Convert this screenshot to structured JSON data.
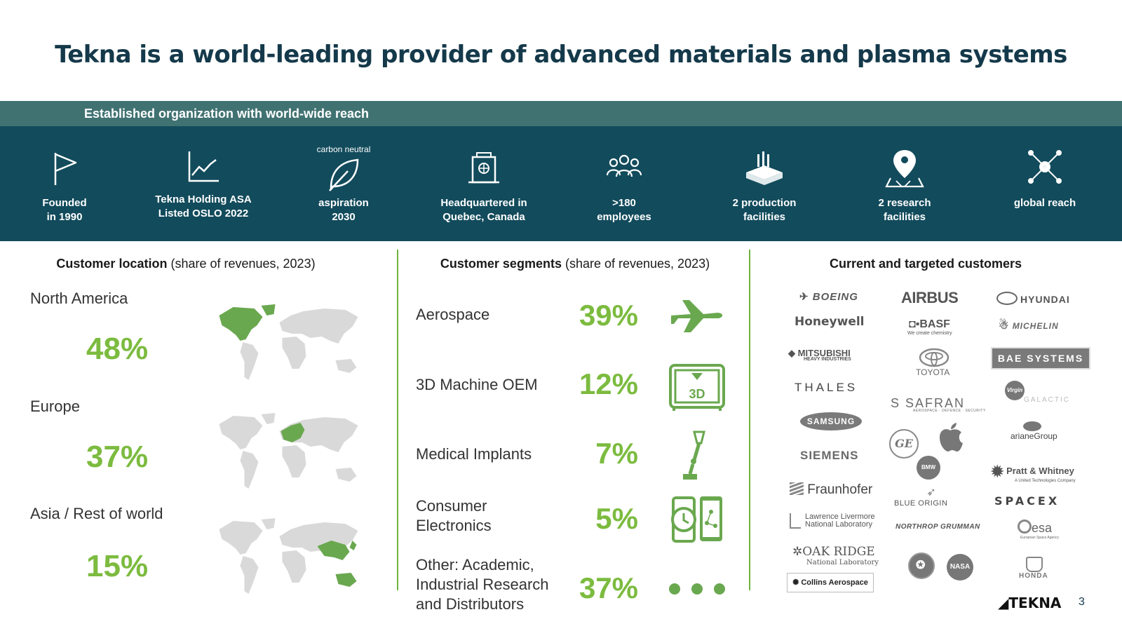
{
  "title": "Tekna is a world-leading provider of advanced materials and plasma systems",
  "band_header": "Established organization with world-wide reach",
  "facts": [
    {
      "icon": "flag-icon",
      "line1": "Founded",
      "line2": "in 1990"
    },
    {
      "icon": "trend-chart-icon",
      "line1": "Tekna Holding ASA",
      "line2": "Listed OSLO 2022"
    },
    {
      "icon": "leaf-icon",
      "caption": "carbon neutral",
      "line1": "aspiration",
      "line2": "2030"
    },
    {
      "icon": "building-icon",
      "line1": "Headquartered in",
      "line2": "Quebec, Canada"
    },
    {
      "icon": "people-icon",
      "line1": ">180",
      "line2": "employees"
    },
    {
      "icon": "factory-icon",
      "line1": "2 production",
      "line2": "facilities"
    },
    {
      "icon": "map-pin-icon",
      "line1": "2 research",
      "line2": "facilities"
    },
    {
      "icon": "network-icon",
      "line1": "global reach",
      "line2": ""
    }
  ],
  "location": {
    "heading_bold": "Customer location",
    "heading_rest": " (share of revenues, 2023)",
    "regions": [
      {
        "name": "North America",
        "pct": "48%"
      },
      {
        "name": "Europe",
        "pct": "37%"
      },
      {
        "name": "Asia / Rest of world",
        "pct": "15%"
      }
    ],
    "colors": {
      "highlight": "#6aa84f",
      "base": "#d9d9d9"
    }
  },
  "segments": {
    "heading_bold": "Customer segments",
    "heading_rest": " (share of revenues, 2023)",
    "items": [
      {
        "name_l1": "Aerospace",
        "name_l2": "",
        "name_l3": "",
        "pct": "39%",
        "icon": "airplane-icon"
      },
      {
        "name_l1": "3D Machine OEM",
        "name_l2": "",
        "name_l3": "",
        "pct": "12%",
        "icon": "3d-printer-icon",
        "icon_text": "3D"
      },
      {
        "name_l1": "Medical Implants",
        "name_l2": "",
        "name_l3": "",
        "pct": "7%",
        "icon": "prosthetic-leg-icon"
      },
      {
        "name_l1": "Consumer",
        "name_l2": "Electronics",
        "name_l3": "",
        "pct": "5%",
        "icon": "devices-icon"
      },
      {
        "name_l1": "Other: Academic,",
        "name_l2": "Industrial Research",
        "name_l3": "and Distributors",
        "pct": "37%",
        "icon": "dots-icon"
      }
    ]
  },
  "customers": {
    "heading": "Current and targeted customers",
    "logos": [
      "BOEING",
      "AIRBUS",
      "HYUNDAI",
      "Honeywell",
      "BASF",
      "We create chemistry",
      "MICHELIN",
      "MITSUBISHI",
      "HEAVY INDUSTRIES",
      "TOYOTA",
      "BAE SYSTEMS",
      "THALES",
      "SAFRAN",
      "AEROSPACE · DEFENCE · SECURITY",
      "Virgin",
      "GALACTIC",
      "SAMSUNG",
      "GE",
      "arianeGroup",
      "SIEMENS",
      "BMW",
      "Pratt & Whitney",
      "A United Technologies Company",
      "Fraunhofer",
      "BLUE ORIGIN",
      "SPACEX",
      "Lawrence Livermore",
      "National Laboratory",
      "NORTHROP GRUMMAN",
      "esa",
      "European Space Agency",
      "OAK RIDGE",
      "National Laboratory ",
      "Collins Aerospace",
      "NASA",
      "HONDA"
    ]
  },
  "footer": {
    "brand": "TEKNA",
    "page": "3"
  },
  "accent": "#7cbb3f",
  "band_color": "#124b5c"
}
